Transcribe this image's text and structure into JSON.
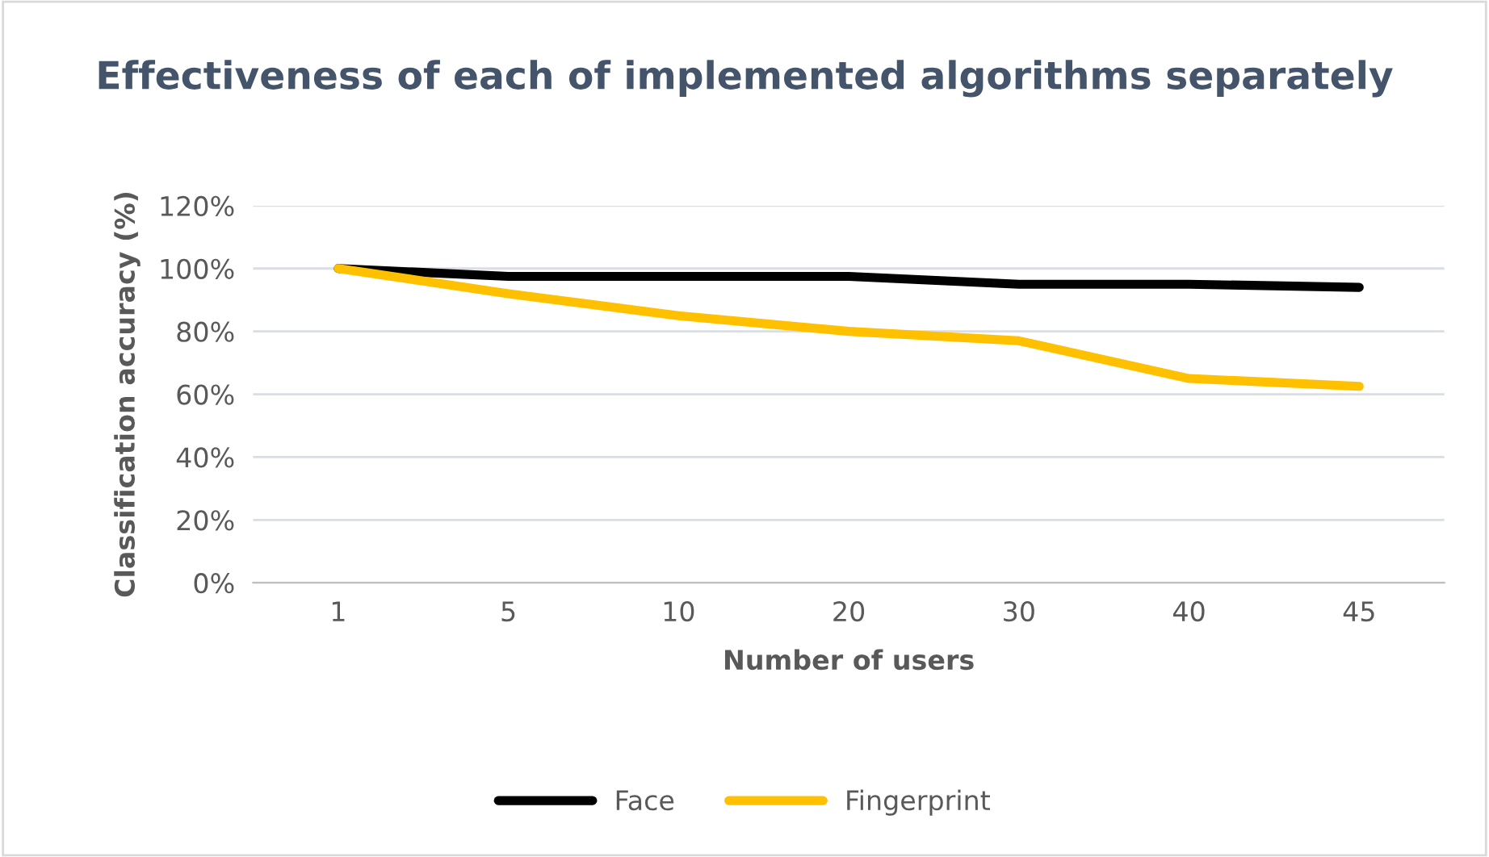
{
  "chart_data": {
    "type": "line",
    "title": "Effectiveness of each of implemented algorithms separately",
    "xlabel": "Number of users",
    "ylabel": "Classification accuracy (%)",
    "categories": [
      "1",
      "5",
      "10",
      "20",
      "30",
      "40",
      "45"
    ],
    "series": [
      {
        "name": "Face",
        "color": "#000000",
        "values": [
          100,
          97.5,
          97.5,
          97.5,
          95,
          95,
          94
        ]
      },
      {
        "name": "Fingerprint",
        "color": "#ffc000",
        "values": [
          100,
          92,
          85,
          80,
          77,
          65,
          62.5
        ]
      }
    ],
    "ylim": [
      0,
      120
    ],
    "yticks": [
      {
        "value": 0,
        "label": "0%"
      },
      {
        "value": 20,
        "label": "20%"
      },
      {
        "value": 40,
        "label": "40%"
      },
      {
        "value": 60,
        "label": "60%"
      },
      {
        "value": 80,
        "label": "80%"
      },
      {
        "value": 100,
        "label": "100%"
      },
      {
        "value": 120,
        "label": "120%"
      }
    ],
    "grid": "y",
    "legend": "bottom",
    "marker": "none",
    "line_style": "solid"
  }
}
